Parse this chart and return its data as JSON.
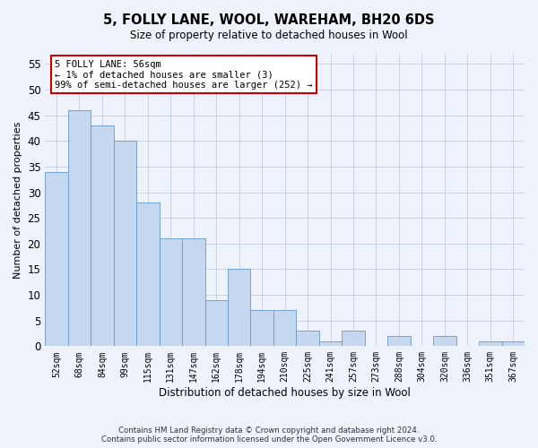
{
  "title": "5, FOLLY LANE, WOOL, WAREHAM, BH20 6DS",
  "subtitle": "Size of property relative to detached houses in Wool",
  "xlabel": "Distribution of detached houses by size in Wool",
  "ylabel": "Number of detached properties",
  "categories": [
    "52sqm",
    "68sqm",
    "84sqm",
    "99sqm",
    "115sqm",
    "131sqm",
    "147sqm",
    "162sqm",
    "178sqm",
    "194sqm",
    "210sqm",
    "225sqm",
    "241sqm",
    "257sqm",
    "273sqm",
    "288sqm",
    "304sqm",
    "320sqm",
    "336sqm",
    "351sqm",
    "367sqm"
  ],
  "values": [
    34,
    46,
    43,
    40,
    28,
    21,
    21,
    9,
    15,
    7,
    7,
    3,
    1,
    3,
    0,
    2,
    0,
    2,
    0,
    1,
    1
  ],
  "bar_color": "#c5d8f0",
  "bar_edge_color": "#6699cc",
  "ylim": [
    0,
    57
  ],
  "yticks": [
    0,
    5,
    10,
    15,
    20,
    25,
    30,
    35,
    40,
    45,
    50,
    55
  ],
  "annotation_box_color": "#ffffff",
  "annotation_border_color": "#cc0000",
  "annotation_line1": "5 FOLLY LANE: 56sqm",
  "annotation_line2": "← 1% of detached houses are smaller (3)",
  "annotation_line3": "99% of semi-detached houses are larger (252) →",
  "footer_line1": "Contains HM Land Registry data © Crown copyright and database right 2024.",
  "footer_line2": "Contains public sector information licensed under the Open Government Licence v3.0.",
  "background_color": "#eef2fb",
  "plot_bg_color": "#eef2fb",
  "grid_color": "#c8d0e8"
}
